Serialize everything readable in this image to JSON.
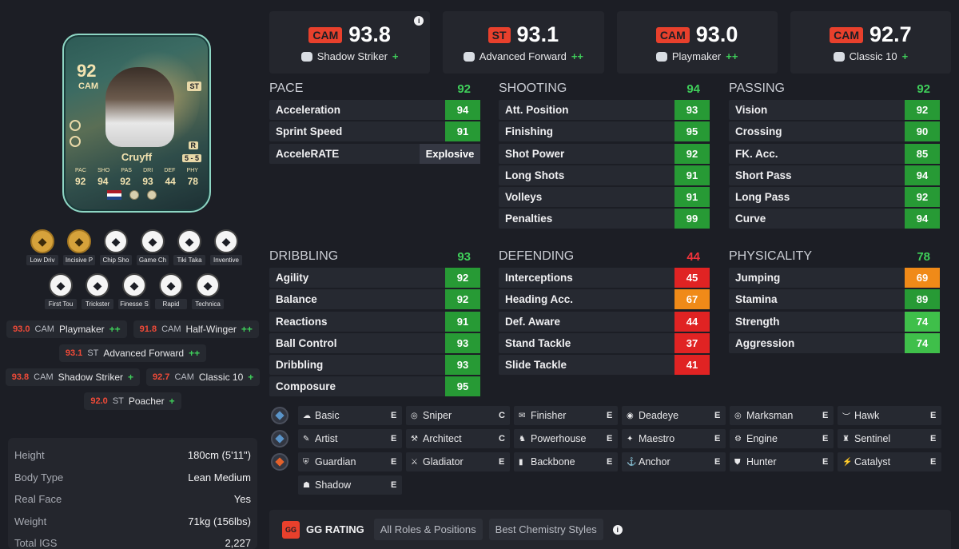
{
  "card": {
    "rating": "92",
    "position": "CAM",
    "alt_position": "ST",
    "name": "Cruyff",
    "foot": "R",
    "skill_weak": "5 - 5",
    "stat_labels": [
      "PAC",
      "SHO",
      "PAS",
      "DRI",
      "DEF",
      "PHY"
    ],
    "stat_values": [
      "92",
      "94",
      "92",
      "93",
      "44",
      "78"
    ]
  },
  "playstyles": {
    "row1": [
      {
        "label": "Low Driv",
        "icon": "low-driven-icon",
        "gold": true
      },
      {
        "label": "Incisive P",
        "icon": "incisive-pass-icon",
        "gold": true
      },
      {
        "label": "Chip Sho",
        "icon": "chip-shot-icon",
        "gold": false
      },
      {
        "label": "Game Ch",
        "icon": "game-changer-icon",
        "gold": false
      },
      {
        "label": "Tiki Taka",
        "icon": "tiki-taka-icon",
        "gold": false
      },
      {
        "label": "Inventive",
        "icon": "inventive-icon",
        "gold": false
      }
    ],
    "row2": [
      {
        "label": "First Tou",
        "icon": "first-touch-icon",
        "gold": false
      },
      {
        "label": "Trickster",
        "icon": "trickster-icon",
        "gold": false
      },
      {
        "label": "Finesse S",
        "icon": "finesse-shot-icon",
        "gold": false
      },
      {
        "label": "Rapid",
        "icon": "rapid-icon",
        "gold": false
      },
      {
        "label": "Technica",
        "icon": "technical-icon",
        "gold": false
      }
    ]
  },
  "roles_list": [
    [
      {
        "value": "93.0",
        "pos": "CAM",
        "name": "Playmaker",
        "plus": "++"
      },
      {
        "value": "91.8",
        "pos": "CAM",
        "name": "Half-Winger",
        "plus": "++"
      }
    ],
    [
      {
        "value": "93.1",
        "pos": "ST",
        "name": "Advanced Forward",
        "plus": "++"
      }
    ],
    [
      {
        "value": "93.8",
        "pos": "CAM",
        "name": "Shadow Striker",
        "plus": "+"
      },
      {
        "value": "92.7",
        "pos": "CAM",
        "name": "Classic 10",
        "plus": "+"
      }
    ],
    [
      {
        "value": "92.0",
        "pos": "ST",
        "name": "Poacher",
        "plus": "+"
      }
    ]
  ],
  "info": [
    {
      "key": "Height",
      "value": "180cm (5'11\")"
    },
    {
      "key": "Body Type",
      "value": "Lean Medium"
    },
    {
      "key": "Real Face",
      "value": "Yes"
    },
    {
      "key": "Weight",
      "value": "71kg (156lbs)"
    },
    {
      "key": "Total IGS",
      "value": "2,227"
    }
  ],
  "top_roles": [
    {
      "pos": "CAM",
      "rating": "93.8",
      "name": "Shadow Striker",
      "plus": "+",
      "info": "i"
    },
    {
      "pos": "ST",
      "rating": "93.1",
      "name": "Advanced Forward",
      "plus": "++"
    },
    {
      "pos": "CAM",
      "rating": "93.0",
      "name": "Playmaker",
      "plus": "++"
    },
    {
      "pos": "CAM",
      "rating": "92.7",
      "name": "Classic 10",
      "plus": "+"
    }
  ],
  "groups": {
    "pace": {
      "title": "PACE",
      "value": "92",
      "color": "green",
      "stats": [
        {
          "name": "Acceleration",
          "value": "94",
          "tier": "green"
        },
        {
          "name": "Sprint Speed",
          "value": "91",
          "tier": "green"
        },
        {
          "name": "AcceleRATE",
          "value": "Explosive",
          "tier": "text"
        }
      ]
    },
    "shooting": {
      "title": "SHOOTING",
      "value": "94",
      "color": "green",
      "stats": [
        {
          "name": "Att. Position",
          "value": "93",
          "tier": "green"
        },
        {
          "name": "Finishing",
          "value": "95",
          "tier": "green"
        },
        {
          "name": "Shot Power",
          "value": "92",
          "tier": "green"
        },
        {
          "name": "Long Shots",
          "value": "91",
          "tier": "green"
        },
        {
          "name": "Volleys",
          "value": "91",
          "tier": "green"
        },
        {
          "name": "Penalties",
          "value": "99",
          "tier": "green"
        }
      ]
    },
    "passing": {
      "title": "PASSING",
      "value": "92",
      "color": "green",
      "stats": [
        {
          "name": "Vision",
          "value": "92",
          "tier": "green"
        },
        {
          "name": "Crossing",
          "value": "90",
          "tier": "green"
        },
        {
          "name": "FK. Acc.",
          "value": "85",
          "tier": "green"
        },
        {
          "name": "Short Pass",
          "value": "94",
          "tier": "green"
        },
        {
          "name": "Long Pass",
          "value": "92",
          "tier": "green"
        },
        {
          "name": "Curve",
          "value": "94",
          "tier": "green"
        }
      ]
    },
    "dribbling": {
      "title": "DRIBBLING",
      "value": "93",
      "color": "green",
      "stats": [
        {
          "name": "Agility",
          "value": "92",
          "tier": "green"
        },
        {
          "name": "Balance",
          "value": "92",
          "tier": "green"
        },
        {
          "name": "Reactions",
          "value": "91",
          "tier": "green"
        },
        {
          "name": "Ball Control",
          "value": "93",
          "tier": "green"
        },
        {
          "name": "Dribbling",
          "value": "93",
          "tier": "green"
        },
        {
          "name": "Composure",
          "value": "95",
          "tier": "green"
        }
      ]
    },
    "defending": {
      "title": "DEFENDING",
      "value": "44",
      "color": "red",
      "stats": [
        {
          "name": "Interceptions",
          "value": "45",
          "tier": "red"
        },
        {
          "name": "Heading Acc.",
          "value": "67",
          "tier": "orange"
        },
        {
          "name": "Def. Aware",
          "value": "44",
          "tier": "red"
        },
        {
          "name": "Stand Tackle",
          "value": "37",
          "tier": "red"
        },
        {
          "name": "Slide Tackle",
          "value": "41",
          "tier": "red"
        }
      ]
    },
    "physicality": {
      "title": "PHYSICALITY",
      "value": "78",
      "color": "green",
      "stats": [
        {
          "name": "Jumping",
          "value": "69",
          "tier": "orange"
        },
        {
          "name": "Stamina",
          "value": "89",
          "tier": "green"
        },
        {
          "name": "Strength",
          "value": "74",
          "tier": "lgreen"
        },
        {
          "name": "Aggression",
          "value": "74",
          "tier": "lgreen"
        }
      ]
    }
  },
  "chem_styles": [
    [
      {
        "name": "Basic",
        "level": "E",
        "glyph": "☁"
      },
      {
        "name": "Sniper",
        "level": "C",
        "glyph": "◎"
      },
      {
        "name": "Finisher",
        "level": "E",
        "glyph": "✉"
      },
      {
        "name": "Deadeye",
        "level": "E",
        "glyph": "◉"
      },
      {
        "name": "Marksman",
        "level": "E",
        "glyph": "◎"
      },
      {
        "name": "Hawk",
        "level": "E",
        "glyph": "︶"
      }
    ],
    [
      {
        "name": "Artist",
        "level": "E",
        "glyph": "✎"
      },
      {
        "name": "Architect",
        "level": "C",
        "glyph": "⚒"
      },
      {
        "name": "Powerhouse",
        "level": "E",
        "glyph": "♞"
      },
      {
        "name": "Maestro",
        "level": "E",
        "glyph": "✦"
      },
      {
        "name": "Engine",
        "level": "E",
        "glyph": "⚙"
      },
      {
        "name": "Sentinel",
        "level": "E",
        "glyph": "♜"
      }
    ],
    [
      {
        "name": "Guardian",
        "level": "E",
        "glyph": "⛨"
      },
      {
        "name": "Gladiator",
        "level": "E",
        "glyph": "⚔"
      },
      {
        "name": "Backbone",
        "level": "E",
        "glyph": "▮"
      },
      {
        "name": "Anchor",
        "level": "E",
        "glyph": "⚓"
      },
      {
        "name": "Hunter",
        "level": "E",
        "glyph": "⛊"
      },
      {
        "name": "Catalyst",
        "level": "E",
        "glyph": "⚡"
      }
    ],
    [
      {
        "name": "Shadow",
        "level": "E",
        "glyph": "☗"
      }
    ]
  ],
  "gg": {
    "logo": "GG",
    "title": "GG RATING",
    "tabs": [
      "All Roles & Positions",
      "Best Chemistry Styles"
    ],
    "info": "i"
  }
}
